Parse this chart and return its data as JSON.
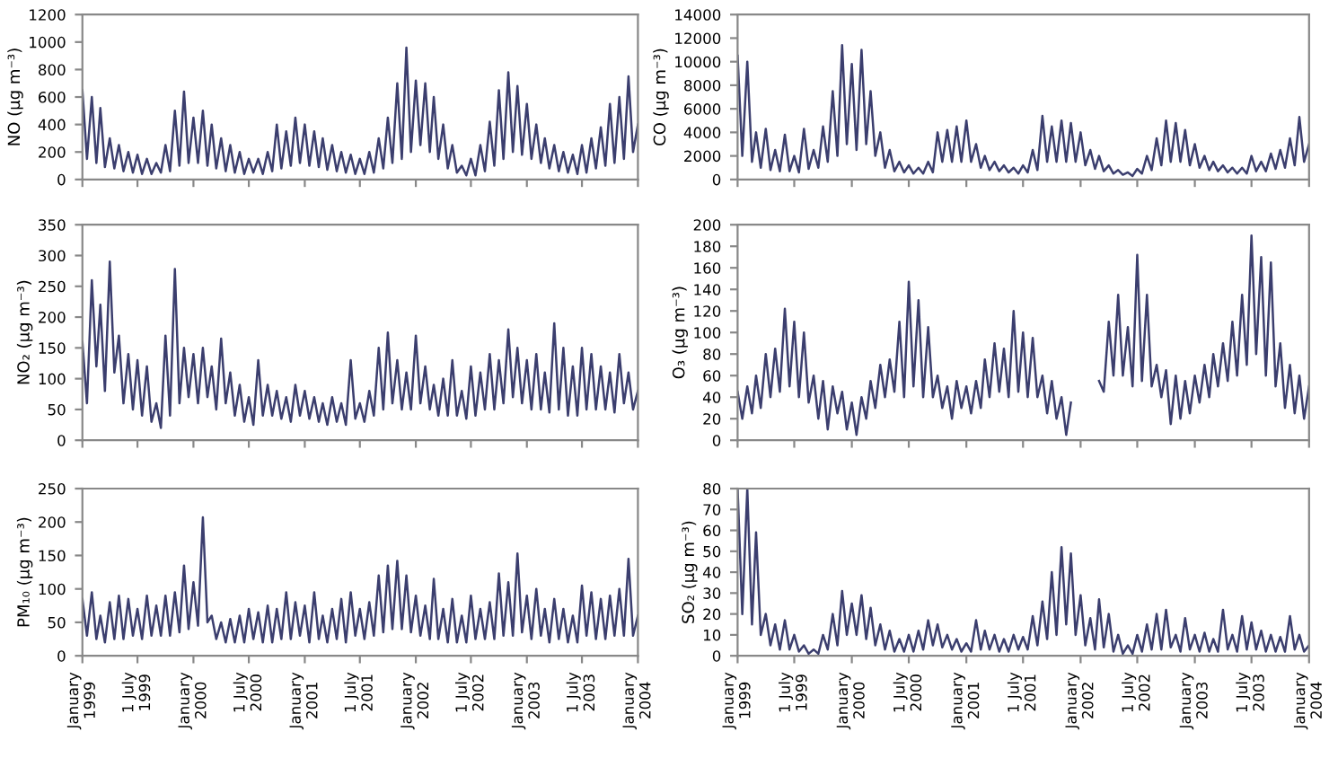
{
  "chart_data": [
    {
      "type": "line",
      "ylabel": "NO (µg m⁻³)",
      "x": [
        "1999-01-01",
        "1999-01-16",
        "1999-02-01",
        "1999-02-16",
        "1999-03-01",
        "1999-03-16",
        "1999-04-01",
        "1999-04-16",
        "1999-05-01",
        "1999-05-16",
        "1999-06-01",
        "1999-06-16",
        "1999-07-01",
        "1999-07-16",
        "1999-08-01",
        "1999-08-16",
        "1999-09-01",
        "1999-09-16",
        "1999-10-01",
        "1999-10-16",
        "1999-11-01",
        "1999-11-16",
        "1999-12-01",
        "1999-12-16",
        "2000-01-01",
        "2000-01-16",
        "2000-02-01",
        "2000-02-16",
        "2000-03-01",
        "2000-03-16",
        "2000-04-01",
        "2000-04-16",
        "2000-05-01",
        "2000-05-16",
        "2000-06-01",
        "2000-06-16",
        "2000-07-01",
        "2000-07-16",
        "2000-08-01",
        "2000-08-16",
        "2000-09-01",
        "2000-09-16",
        "2000-10-01",
        "2000-10-16",
        "2000-11-01",
        "2000-11-16",
        "2000-12-01",
        "2000-12-16",
        "2001-01-01",
        "2001-01-16",
        "2001-02-01",
        "2001-02-16",
        "2001-03-01",
        "2001-03-16",
        "2001-04-01",
        "2001-04-16",
        "2001-05-01",
        "2001-05-16",
        "2001-06-01",
        "2001-06-16",
        "2001-07-01",
        "2001-07-16",
        "2001-08-01",
        "2001-08-16",
        "2001-09-01",
        "2001-09-16",
        "2001-10-01",
        "2001-10-16",
        "2001-11-01",
        "2001-11-16",
        "2001-12-01",
        "2001-12-16",
        "2002-01-01",
        "2002-01-16",
        "2002-02-01",
        "2002-02-16",
        "2002-03-01",
        "2002-03-16",
        "2002-04-01",
        "2002-04-16",
        "2002-05-01",
        "2002-05-16",
        "2002-06-01",
        "2002-06-16",
        "2002-07-01",
        "2002-07-16",
        "2002-08-01",
        "2002-08-16",
        "2002-09-01",
        "2002-09-16",
        "2002-10-01",
        "2002-10-16",
        "2002-11-01",
        "2002-11-16",
        "2002-12-01",
        "2002-12-16",
        "2003-01-01",
        "2003-01-16",
        "2003-02-01",
        "2003-02-16",
        "2003-03-01",
        "2003-03-16",
        "2003-04-01",
        "2003-04-16",
        "2003-05-01",
        "2003-05-16",
        "2003-06-01",
        "2003-06-16",
        "2003-07-01",
        "2003-07-16",
        "2003-08-01",
        "2003-08-16",
        "2003-09-01",
        "2003-09-16",
        "2003-10-01",
        "2003-10-16",
        "2003-11-01",
        "2003-11-16",
        "2003-12-01",
        "2003-12-16",
        "2004-01-01"
      ],
      "series": [
        {
          "color": "#3b3e6e",
          "values": [
            650,
            150,
            600,
            120,
            520,
            90,
            300,
            80,
            250,
            60,
            200,
            50,
            180,
            40,
            150,
            40,
            120,
            50,
            250,
            60,
            500,
            100,
            640,
            120,
            450,
            120,
            500,
            100,
            400,
            80,
            300,
            60,
            250,
            50,
            200,
            40,
            150,
            50,
            150,
            40,
            200,
            60,
            400,
            80,
            350,
            100,
            450,
            120,
            400,
            100,
            350,
            90,
            300,
            70,
            250,
            60,
            200,
            50,
            180,
            40,
            150,
            40,
            200,
            50,
            300,
            80,
            450,
            120,
            700,
            150,
            960,
            200,
            720,
            250,
            700,
            200,
            600,
            150,
            400,
            80,
            250,
            50,
            100,
            30,
            150,
            30,
            250,
            60,
            420,
            100,
            650,
            150,
            780,
            200,
            680,
            180,
            550,
            150,
            400,
            120,
            300,
            80,
            250,
            60,
            200,
            50,
            180,
            40,
            250,
            50,
            300,
            80,
            380,
            100,
            550,
            120,
            600,
            150,
            750,
            200,
            400
          ]
        }
      ],
      "xlim": [
        "1999-01-01",
        "2004-01-01"
      ],
      "ylim": [
        0,
        1200
      ],
      "yticks": [
        0,
        200,
        400,
        600,
        800,
        1000,
        1200
      ],
      "tick_labels": "y"
    },
    {
      "type": "line",
      "ylabel": "CO (µg m⁻³)",
      "x": [
        "1999-01-01",
        "1999-01-16",
        "1999-02-01",
        "1999-02-16",
        "1999-03-01",
        "1999-03-16",
        "1999-04-01",
        "1999-04-16",
        "1999-05-01",
        "1999-05-16",
        "1999-06-01",
        "1999-06-16",
        "1999-07-01",
        "1999-07-16",
        "1999-08-01",
        "1999-08-16",
        "1999-09-01",
        "1999-09-16",
        "1999-10-01",
        "1999-10-16",
        "1999-11-01",
        "1999-11-16",
        "1999-12-01",
        "1999-12-16",
        "2000-01-01",
        "2000-01-16",
        "2000-02-01",
        "2000-02-16",
        "2000-03-01",
        "2000-03-16",
        "2000-04-01",
        "2000-04-16",
        "2000-05-01",
        "2000-05-16",
        "2000-06-01",
        "2000-06-16",
        "2000-07-01",
        "2000-07-16",
        "2000-08-01",
        "2000-08-16",
        "2000-09-01",
        "2000-09-16",
        "2000-10-01",
        "2000-10-16",
        "2000-11-01",
        "2000-11-16",
        "2000-12-01",
        "2000-12-16",
        "2001-01-01",
        "2001-01-16",
        "2001-02-01",
        "2001-02-16",
        "2001-03-01",
        "2001-03-16",
        "2001-04-01",
        "2001-04-16",
        "2001-05-01",
        "2001-05-16",
        "2001-06-01",
        "2001-06-16",
        "2001-07-01",
        "2001-07-16",
        "2001-08-01",
        "2001-08-16",
        "2001-09-01",
        "2001-09-16",
        "2001-10-01",
        "2001-10-16",
        "2001-11-01",
        "2001-11-16",
        "2001-12-01",
        "2001-12-16",
        "2002-01-01",
        "2002-01-16",
        "2002-02-01",
        "2002-02-16",
        "2002-03-01",
        "2002-03-16",
        "2002-04-01",
        "2002-04-16",
        "2002-05-01",
        "2002-05-16",
        "2002-06-01",
        "2002-06-16",
        "2002-07-01",
        "2002-07-16",
        "2002-08-01",
        "2002-08-16",
        "2002-09-01",
        "2002-09-16",
        "2002-10-01",
        "2002-10-16",
        "2002-11-01",
        "2002-11-16",
        "2002-12-01",
        "2002-12-16",
        "2003-01-01",
        "2003-01-16",
        "2003-02-01",
        "2003-02-16",
        "2003-03-01",
        "2003-03-16",
        "2003-04-01",
        "2003-04-16",
        "2003-05-01",
        "2003-05-16",
        "2003-06-01",
        "2003-06-16",
        "2003-07-01",
        "2003-07-16",
        "2003-08-01",
        "2003-08-16",
        "2003-09-01",
        "2003-09-16",
        "2003-10-01",
        "2003-10-16",
        "2003-11-01",
        "2003-11-16",
        "2003-12-01",
        "2003-12-16",
        "2004-01-01"
      ],
      "series": [
        {
          "color": "#3b3e6e",
          "values": [
            10500,
            2000,
            10000,
            1500,
            4000,
            1000,
            4300,
            800,
            2500,
            700,
            3800,
            700,
            2000,
            600,
            4300,
            900,
            2500,
            1000,
            4500,
            1500,
            7500,
            2000,
            11400,
            3000,
            9800,
            2500,
            11000,
            3000,
            7500,
            2000,
            4000,
            1000,
            2500,
            700,
            1500,
            600,
            1200,
            500,
            1000,
            500,
            1500,
            600,
            4000,
            1500,
            4200,
            1500,
            4500,
            1500,
            5000,
            1500,
            3000,
            1000,
            2000,
            800,
            1500,
            700,
            1200,
            600,
            1000,
            500,
            1200,
            600,
            2500,
            800,
            5400,
            1500,
            4500,
            1500,
            5000,
            1500,
            4800,
            1500,
            4000,
            1200,
            2500,
            900,
            2000,
            700,
            1200,
            500,
            800,
            400,
            600,
            300,
            900,
            500,
            2000,
            800,
            3500,
            1200,
            5000,
            1500,
            4800,
            1500,
            4200,
            1200,
            3000,
            1000,
            2000,
            800,
            1500,
            700,
            1200,
            600,
            1000,
            500,
            1000,
            500,
            2000,
            700,
            1500,
            700,
            2200,
            900,
            2500,
            1000,
            3500,
            1200,
            5300,
            1500,
            3000
          ]
        }
      ],
      "xlim": [
        "1999-01-01",
        "2004-01-01"
      ],
      "ylim": [
        0,
        14000
      ],
      "yticks": [
        0,
        2000,
        4000,
        6000,
        8000,
        10000,
        12000,
        14000
      ],
      "tick_labels": "y"
    },
    {
      "type": "line",
      "ylabel": "NO₂ (µg m⁻³)",
      "x": [
        "1999-01-01",
        "1999-01-16",
        "1999-02-01",
        "1999-02-16",
        "1999-03-01",
        "1999-03-16",
        "1999-04-01",
        "1999-04-16",
        "1999-05-01",
        "1999-05-16",
        "1999-06-01",
        "1999-06-16",
        "1999-07-01",
        "1999-07-16",
        "1999-08-01",
        "1999-08-16",
        "1999-09-01",
        "1999-09-16",
        "1999-10-01",
        "1999-10-16",
        "1999-11-01",
        "1999-11-16",
        "1999-12-01",
        "1999-12-16",
        "2000-01-01",
        "2000-01-16",
        "2000-02-01",
        "2000-02-16",
        "2000-03-01",
        "2000-03-16",
        "2000-04-01",
        "2000-04-16",
        "2000-05-01",
        "2000-05-16",
        "2000-06-01",
        "2000-06-16",
        "2000-07-01",
        "2000-07-16",
        "2000-08-01",
        "2000-08-16",
        "2000-09-01",
        "2000-09-16",
        "2000-10-01",
        "2000-10-16",
        "2000-11-01",
        "2000-11-16",
        "2000-12-01",
        "2000-12-16",
        "2001-01-01",
        "2001-01-16",
        "2001-02-01",
        "2001-02-16",
        "2001-03-01",
        "2001-03-16",
        "2001-04-01",
        "2001-04-16",
        "2001-05-01",
        "2001-05-16",
        "2001-06-01",
        "2001-06-16",
        "2001-07-01",
        "2001-07-16",
        "2001-08-01",
        "2001-08-16",
        "2001-09-01",
        "2001-09-16",
        "2001-10-01",
        "2001-10-16",
        "2001-11-01",
        "2001-11-16",
        "2001-12-01",
        "2001-12-16",
        "2002-01-01",
        "2002-01-16",
        "2002-02-01",
        "2002-02-16",
        "2002-03-01",
        "2002-03-16",
        "2002-04-01",
        "2002-04-16",
        "2002-05-01",
        "2002-05-16",
        "2002-06-01",
        "2002-06-16",
        "2002-07-01",
        "2002-07-16",
        "2002-08-01",
        "2002-08-16",
        "2002-09-01",
        "2002-09-16",
        "2002-10-01",
        "2002-10-16",
        "2002-11-01",
        "2002-11-16",
        "2002-12-01",
        "2002-12-16",
        "2003-01-01",
        "2003-01-16",
        "2003-02-01",
        "2003-02-16",
        "2003-03-01",
        "2003-03-16",
        "2003-04-01",
        "2003-04-16",
        "2003-05-01",
        "2003-05-16",
        "2003-06-01",
        "2003-06-16",
        "2003-07-01",
        "2003-07-16",
        "2003-08-01",
        "2003-08-16",
        "2003-09-01",
        "2003-09-16",
        "2003-10-01",
        "2003-10-16",
        "2003-11-01",
        "2003-11-16",
        "2003-12-01",
        "2003-12-16",
        "2004-01-01"
      ],
      "series": [
        {
          "color": "#3b3e6e",
          "values": [
            160,
            60,
            260,
            120,
            220,
            80,
            290,
            110,
            170,
            60,
            140,
            50,
            130,
            40,
            120,
            30,
            60,
            20,
            170,
            40,
            278,
            60,
            150,
            70,
            140,
            60,
            150,
            70,
            120,
            50,
            165,
            60,
            110,
            40,
            90,
            30,
            70,
            25,
            130,
            40,
            90,
            40,
            80,
            35,
            70,
            30,
            90,
            40,
            80,
            35,
            70,
            30,
            60,
            25,
            70,
            30,
            60,
            25,
            130,
            35,
            60,
            30,
            80,
            40,
            150,
            50,
            175,
            60,
            130,
            50,
            110,
            50,
            170,
            60,
            120,
            50,
            90,
            40,
            100,
            40,
            130,
            40,
            80,
            35,
            120,
            40,
            110,
            50,
            140,
            50,
            130,
            60,
            180,
            70,
            150,
            60,
            130,
            50,
            140,
            50,
            110,
            45,
            190,
            50,
            150,
            40,
            120,
            40,
            150,
            50,
            140,
            50,
            120,
            50,
            110,
            45,
            140,
            60,
            110,
            50,
            80
          ]
        }
      ],
      "xlim": [
        "1999-01-01",
        "2004-01-01"
      ],
      "ylim": [
        0,
        350
      ],
      "yticks": [
        0,
        50,
        100,
        150,
        200,
        250,
        300,
        350
      ],
      "tick_labels": "y"
    },
    {
      "type": "line",
      "ylabel": "O₃ (µg m⁻³)",
      "x": [
        "1999-01-01",
        "1999-01-16",
        "1999-02-01",
        "1999-02-16",
        "1999-03-01",
        "1999-03-16",
        "1999-04-01",
        "1999-04-16",
        "1999-05-01",
        "1999-05-16",
        "1999-06-01",
        "1999-06-16",
        "1999-07-01",
        "1999-07-16",
        "1999-08-01",
        "1999-08-16",
        "1999-09-01",
        "1999-09-16",
        "1999-10-01",
        "1999-10-16",
        "1999-11-01",
        "1999-11-16",
        "1999-12-01",
        "1999-12-16",
        "2000-01-01",
        "2000-01-16",
        "2000-02-01",
        "2000-02-16",
        "2000-03-01",
        "2000-03-16",
        "2000-04-01",
        "2000-04-16",
        "2000-05-01",
        "2000-05-16",
        "2000-06-01",
        "2000-06-16",
        "2000-07-01",
        "2000-07-16",
        "2000-08-01",
        "2000-08-16",
        "2000-09-01",
        "2000-09-16",
        "2000-10-01",
        "2000-10-16",
        "2000-11-01",
        "2000-11-16",
        "2000-12-01",
        "2000-12-16",
        "2001-01-01",
        "2001-01-16",
        "2001-02-01",
        "2001-02-16",
        "2001-03-01",
        "2001-03-16",
        "2001-04-01",
        "2001-04-16",
        "2001-05-01",
        "2001-05-16",
        "2001-06-01",
        "2001-06-16",
        "2001-07-01",
        "2001-07-16",
        "2001-08-01",
        "2001-08-16",
        "2001-09-01",
        "2001-09-16",
        "2001-10-01",
        "2001-10-16",
        "2001-11-01",
        "2001-11-16",
        "2001-12-01",
        "2001-12-16",
        "2002-01-01",
        "2002-01-16",
        "2002-02-01",
        "2002-02-16",
        "2002-03-01",
        "2002-03-16",
        "2002-04-01",
        "2002-04-16",
        "2002-05-01",
        "2002-05-16",
        "2002-06-01",
        "2002-06-16",
        "2002-07-01",
        "2002-07-16",
        "2002-08-01",
        "2002-08-16",
        "2002-09-01",
        "2002-09-16",
        "2002-10-01",
        "2002-10-16",
        "2002-11-01",
        "2002-11-16",
        "2002-12-01",
        "2002-12-16",
        "2003-01-01",
        "2003-01-16",
        "2003-02-01",
        "2003-02-16",
        "2003-03-01",
        "2003-03-16",
        "2003-04-01",
        "2003-04-16",
        "2003-05-01",
        "2003-05-16",
        "2003-06-01",
        "2003-06-16",
        "2003-07-01",
        "2003-07-16",
        "2003-08-01",
        "2003-08-16",
        "2003-09-01",
        "2003-09-16",
        "2003-10-01",
        "2003-10-16",
        "2003-11-01",
        "2003-11-16",
        "2003-12-01",
        "2003-12-16",
        "2004-01-01"
      ],
      "series": [
        {
          "color": "#3b3e6e",
          "values": [
            45,
            20,
            50,
            25,
            60,
            30,
            80,
            40,
            85,
            45,
            122,
            50,
            110,
            40,
            100,
            35,
            60,
            20,
            55,
            10,
            50,
            25,
            45,
            10,
            35,
            5,
            40,
            20,
            55,
            30,
            70,
            40,
            75,
            45,
            110,
            40,
            147,
            50,
            130,
            40,
            105,
            40,
            60,
            30,
            50,
            20,
            55,
            30,
            50,
            25,
            55,
            30,
            75,
            40,
            90,
            45,
            85,
            40,
            120,
            45,
            100,
            40,
            95,
            40,
            60,
            25,
            55,
            20,
            40,
            5,
            35,
            null,
            null,
            null,
            null,
            null,
            55,
            45,
            110,
            60,
            135,
            60,
            105,
            50,
            172,
            55,
            135,
            50,
            70,
            40,
            65,
            15,
            60,
            20,
            55,
            25,
            60,
            35,
            70,
            40,
            80,
            50,
            90,
            55,
            110,
            60,
            135,
            70,
            190,
            80,
            170,
            60,
            165,
            50,
            90,
            30,
            70,
            25,
            60,
            20,
            50
          ]
        }
      ],
      "xlim": [
        "1999-01-01",
        "2004-01-01"
      ],
      "ylim": [
        0,
        200
      ],
      "yticks": [
        0,
        20,
        40,
        60,
        80,
        100,
        120,
        140,
        160,
        180,
        200
      ],
      "tick_labels": "y"
    },
    {
      "type": "line",
      "ylabel": "PM₁₀ (µg m⁻³)",
      "x": [
        "1999-01-01",
        "1999-01-16",
        "1999-02-01",
        "1999-02-16",
        "1999-03-01",
        "1999-03-16",
        "1999-04-01",
        "1999-04-16",
        "1999-05-01",
        "1999-05-16",
        "1999-06-01",
        "1999-06-16",
        "1999-07-01",
        "1999-07-16",
        "1999-08-01",
        "1999-08-16",
        "1999-09-01",
        "1999-09-16",
        "1999-10-01",
        "1999-10-16",
        "1999-11-01",
        "1999-11-16",
        "1999-12-01",
        "1999-12-16",
        "2000-01-01",
        "2000-01-16",
        "2000-02-01",
        "2000-02-16",
        "2000-03-01",
        "2000-03-16",
        "2000-04-01",
        "2000-04-16",
        "2000-05-01",
        "2000-05-16",
        "2000-06-01",
        "2000-06-16",
        "2000-07-01",
        "2000-07-16",
        "2000-08-01",
        "2000-08-16",
        "2000-09-01",
        "2000-09-16",
        "2000-10-01",
        "2000-10-16",
        "2000-11-01",
        "2000-11-16",
        "2000-12-01",
        "2000-12-16",
        "2001-01-01",
        "2001-01-16",
        "2001-02-01",
        "2001-02-16",
        "2001-03-01",
        "2001-03-16",
        "2001-04-01",
        "2001-04-16",
        "2001-05-01",
        "2001-05-16",
        "2001-06-01",
        "2001-06-16",
        "2001-07-01",
        "2001-07-16",
        "2001-08-01",
        "2001-08-16",
        "2001-09-01",
        "2001-09-16",
        "2001-10-01",
        "2001-10-16",
        "2001-11-01",
        "2001-11-16",
        "2001-12-01",
        "2001-12-16",
        "2002-01-01",
        "2002-01-16",
        "2002-02-01",
        "2002-02-16",
        "2002-03-01",
        "2002-03-16",
        "2002-04-01",
        "2002-04-16",
        "2002-05-01",
        "2002-05-16",
        "2002-06-01",
        "2002-06-16",
        "2002-07-01",
        "2002-07-16",
        "2002-08-01",
        "2002-08-16",
        "2002-09-01",
        "2002-09-16",
        "2002-10-01",
        "2002-10-16",
        "2002-11-01",
        "2002-11-16",
        "2002-12-01",
        "2002-12-16",
        "2003-01-01",
        "2003-01-16",
        "2003-02-01",
        "2003-02-16",
        "2003-03-01",
        "2003-03-16",
        "2003-04-01",
        "2003-04-16",
        "2003-05-01",
        "2003-05-16",
        "2003-06-01",
        "2003-06-16",
        "2003-07-01",
        "2003-07-16",
        "2003-08-01",
        "2003-08-16",
        "2003-09-01",
        "2003-09-16",
        "2003-10-01",
        "2003-10-16",
        "2003-11-01",
        "2003-11-16",
        "2003-12-01",
        "2003-12-16",
        "2004-01-01"
      ],
      "series": [
        {
          "color": "#3b3e6e",
          "values": [
            85,
            30,
            95,
            25,
            60,
            20,
            80,
            25,
            90,
            25,
            85,
            30,
            70,
            25,
            90,
            30,
            75,
            30,
            90,
            30,
            95,
            35,
            135,
            40,
            110,
            45,
            207,
            50,
            60,
            25,
            50,
            20,
            55,
            20,
            60,
            20,
            70,
            25,
            65,
            20,
            75,
            20,
            70,
            25,
            95,
            25,
            80,
            30,
            75,
            20,
            95,
            25,
            60,
            20,
            70,
            25,
            85,
            20,
            95,
            30,
            70,
            25,
            80,
            30,
            120,
            35,
            135,
            40,
            142,
            40,
            120,
            35,
            90,
            30,
            75,
            25,
            115,
            25,
            70,
            20,
            85,
            20,
            60,
            20,
            90,
            25,
            70,
            25,
            80,
            25,
            123,
            30,
            110,
            30,
            153,
            35,
            90,
            25,
            100,
            30,
            70,
            20,
            85,
            25,
            70,
            20,
            60,
            20,
            105,
            30,
            95,
            25,
            85,
            25,
            90,
            30,
            100,
            30,
            145,
            30,
            60
          ]
        }
      ],
      "xlim": [
        "1999-01-01",
        "2004-01-01"
      ],
      "xticks": [
        {
          "value": "1999-01-01",
          "label": "January\n1999"
        },
        {
          "value": "1999-07-01",
          "label": "1 July\n1999"
        },
        {
          "value": "2000-01-01",
          "label": "January\n2000"
        },
        {
          "value": "2000-07-01",
          "label": "1 July\n2000"
        },
        {
          "value": "2001-01-01",
          "label": "January\n2001"
        },
        {
          "value": "2001-07-01",
          "label": "1 July\n2001"
        },
        {
          "value": "2002-01-01",
          "label": "January\n2002"
        },
        {
          "value": "2002-07-01",
          "label": "1 July\n2002"
        },
        {
          "value": "2003-01-01",
          "label": "January\n2003"
        },
        {
          "value": "2003-07-01",
          "label": "1 July\n2003"
        },
        {
          "value": "2004-01-01",
          "label": "January\n2004"
        }
      ],
      "ylim": [
        0,
        250
      ],
      "yticks": [
        0,
        50,
        100,
        150,
        200,
        250
      ]
    },
    {
      "type": "line",
      "ylabel": "SO₂ (µg m⁻³)",
      "x": [
        "1999-01-01",
        "1999-01-16",
        "1999-02-01",
        "1999-02-16",
        "1999-03-01",
        "1999-03-16",
        "1999-04-01",
        "1999-04-16",
        "1999-05-01",
        "1999-05-16",
        "1999-06-01",
        "1999-06-16",
        "1999-07-01",
        "1999-07-16",
        "1999-08-01",
        "1999-08-16",
        "1999-09-01",
        "1999-09-16",
        "1999-10-01",
        "1999-10-16",
        "1999-11-01",
        "1999-11-16",
        "1999-12-01",
        "1999-12-16",
        "2000-01-01",
        "2000-01-16",
        "2000-02-01",
        "2000-02-16",
        "2000-03-01",
        "2000-03-16",
        "2000-04-01",
        "2000-04-16",
        "2000-05-01",
        "2000-05-16",
        "2000-06-01",
        "2000-06-16",
        "2000-07-01",
        "2000-07-16",
        "2000-08-01",
        "2000-08-16",
        "2000-09-01",
        "2000-09-16",
        "2000-10-01",
        "2000-10-16",
        "2000-11-01",
        "2000-11-16",
        "2000-12-01",
        "2000-12-16",
        "2001-01-01",
        "2001-01-16",
        "2001-02-01",
        "2001-02-16",
        "2001-03-01",
        "2001-03-16",
        "2001-04-01",
        "2001-04-16",
        "2001-05-01",
        "2001-05-16",
        "2001-06-01",
        "2001-06-16",
        "2001-07-01",
        "2001-07-16",
        "2001-08-01",
        "2001-08-16",
        "2001-09-01",
        "2001-09-16",
        "2001-10-01",
        "2001-10-16",
        "2001-11-01",
        "2001-11-16",
        "2001-12-01",
        "2001-12-16",
        "2002-01-01",
        "2002-01-16",
        "2002-02-01",
        "2002-02-16",
        "2002-03-01",
        "2002-03-16",
        "2002-04-01",
        "2002-04-16",
        "2002-05-01",
        "2002-05-16",
        "2002-06-01",
        "2002-06-16",
        "2002-07-01",
        "2002-07-16",
        "2002-08-01",
        "2002-08-16",
        "2002-09-01",
        "2002-09-16",
        "2002-10-01",
        "2002-10-16",
        "2002-11-01",
        "2002-11-16",
        "2002-12-01",
        "2002-12-16",
        "2003-01-01",
        "2003-01-16",
        "2003-02-01",
        "2003-02-16",
        "2003-03-01",
        "2003-03-16",
        "2003-04-01",
        "2003-04-16",
        "2003-05-01",
        "2003-05-16",
        "2003-06-01",
        "2003-06-16",
        "2003-07-01",
        "2003-07-16",
        "2003-08-01",
        "2003-08-16",
        "2003-09-01",
        "2003-09-16",
        "2003-10-01",
        "2003-10-16",
        "2003-11-01",
        "2003-11-16",
        "2003-12-01",
        "2003-12-16",
        "2004-01-01"
      ],
      "series": [
        {
          "color": "#3b3e6e",
          "values": [
            80,
            20,
            80,
            15,
            59,
            10,
            20,
            5,
            15,
            3,
            17,
            3,
            10,
            2,
            5,
            1,
            3,
            1,
            10,
            3,
            20,
            5,
            31,
            10,
            25,
            10,
            29,
            8,
            23,
            5,
            15,
            3,
            12,
            2,
            8,
            2,
            10,
            2,
            12,
            3,
            17,
            5,
            15,
            4,
            10,
            3,
            8,
            2,
            6,
            2,
            17,
            3,
            12,
            3,
            10,
            2,
            8,
            2,
            10,
            3,
            9,
            3,
            19,
            5,
            26,
            8,
            40,
            10,
            52,
            15,
            49,
            10,
            29,
            5,
            18,
            3,
            27,
            4,
            20,
            2,
            10,
            1,
            5,
            1,
            10,
            2,
            15,
            3,
            20,
            3,
            22,
            4,
            10,
            2,
            18,
            3,
            10,
            2,
            11,
            2,
            8,
            2,
            22,
            3,
            10,
            2,
            19,
            3,
            16,
            3,
            12,
            2,
            10,
            2,
            9,
            2,
            19,
            3,
            10,
            2,
            5
          ]
        }
      ],
      "xlim": [
        "1999-01-01",
        "2004-01-01"
      ],
      "xticks": [
        {
          "value": "1999-01-01",
          "label": "January\n1999"
        },
        {
          "value": "1999-07-01",
          "label": "1 July\n1999"
        },
        {
          "value": "2000-01-01",
          "label": "January\n2000"
        },
        {
          "value": "2000-07-01",
          "label": "1 July\n2000"
        },
        {
          "value": "2001-01-01",
          "label": "January\n2001"
        },
        {
          "value": "2001-07-01",
          "label": "1 July\n2001"
        },
        {
          "value": "2002-01-01",
          "label": "January\n2002"
        },
        {
          "value": "2002-07-01",
          "label": "1 July\n2002"
        },
        {
          "value": "2003-01-01",
          "label": "January\n2003"
        },
        {
          "value": "2003-07-01",
          "label": "1 July\n2003"
        },
        {
          "value": "2004-01-01",
          "label": "January\n2004"
        }
      ],
      "ylim": [
        0,
        80
      ],
      "yticks": [
        0,
        10,
        20,
        30,
        40,
        50,
        60,
        70,
        80
      ]
    }
  ]
}
